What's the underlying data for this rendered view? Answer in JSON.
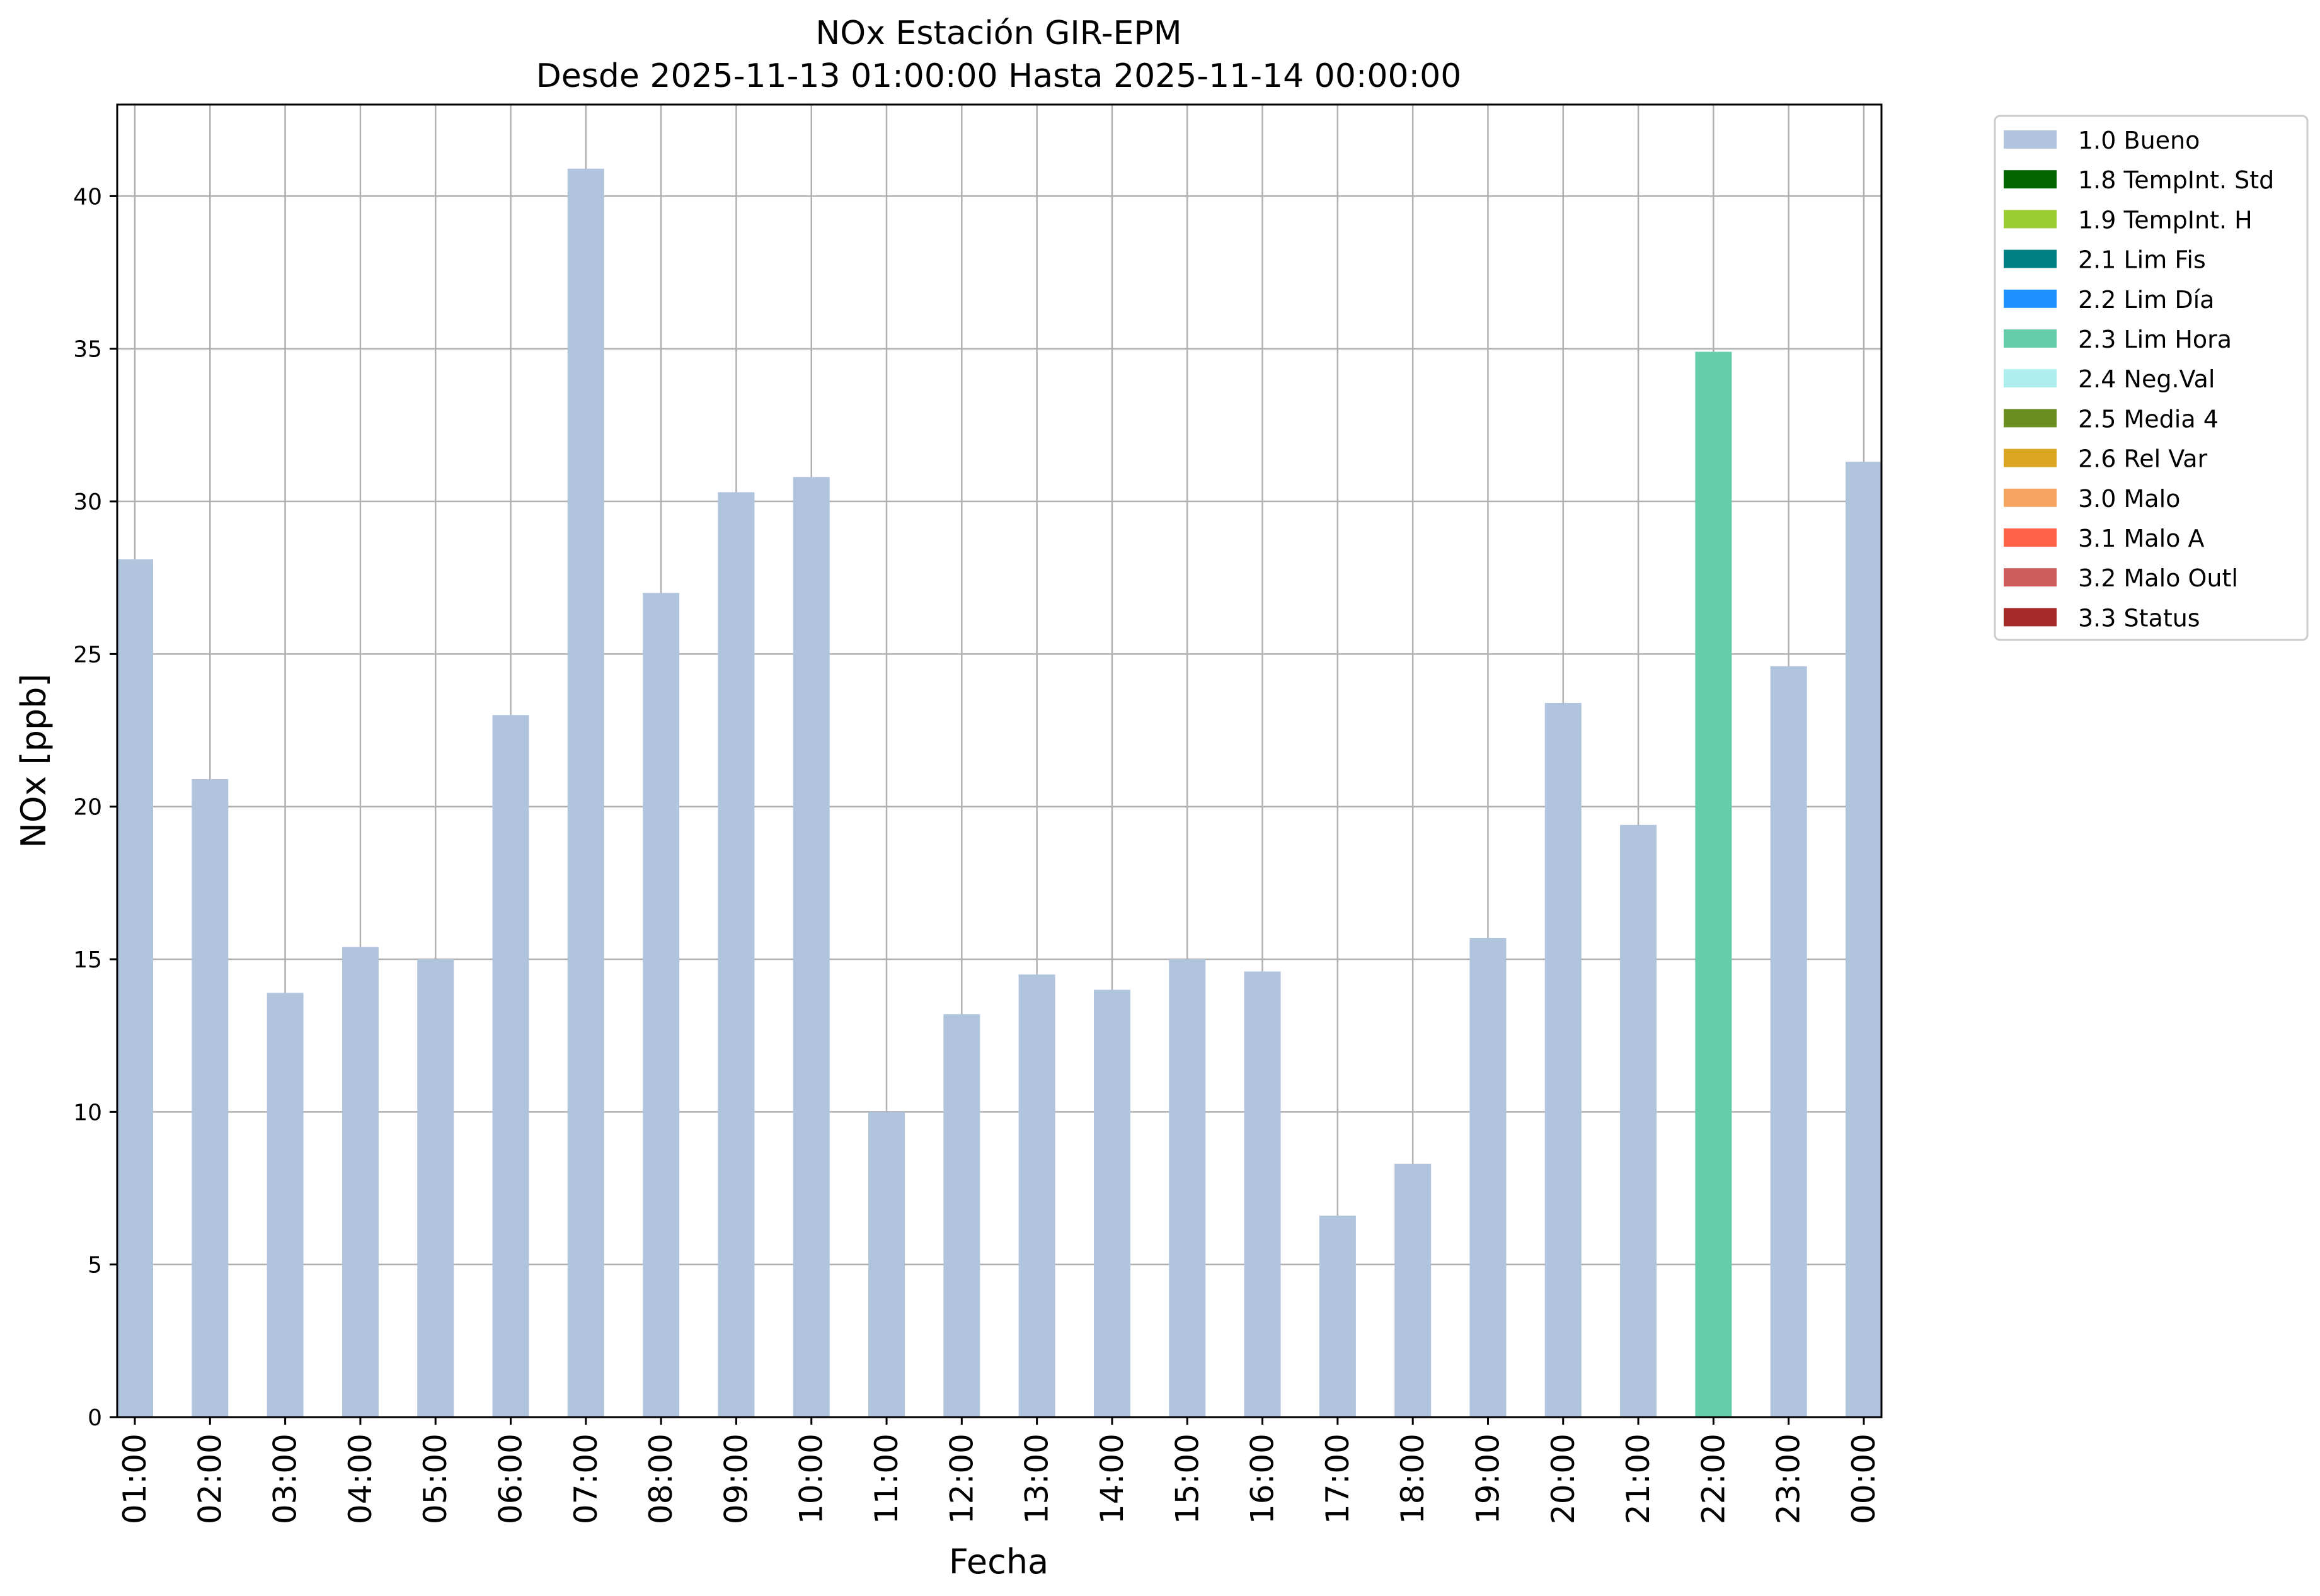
{
  "chart_data": {
    "type": "bar",
    "title": "NOx Estación GIR-EPM",
    "subtitle": "Desde 2025-11-13 01:00:00 Hasta 2025-11-14 00:00:00",
    "xlabel": "Fecha",
    "ylabel": "NOx [ppb]",
    "ylim": [
      0,
      43
    ],
    "yticks": [
      0,
      5,
      10,
      15,
      20,
      25,
      30,
      35,
      40
    ],
    "ytick_labels": [
      "0",
      "5",
      "10",
      "15",
      "20",
      "25",
      "30",
      "35",
      "40"
    ],
    "grid": true,
    "legend_position": "outside-top-right",
    "categories": [
      "01:00",
      "02:00",
      "03:00",
      "04:00",
      "05:00",
      "06:00",
      "07:00",
      "08:00",
      "09:00",
      "10:00",
      "11:00",
      "12:00",
      "13:00",
      "14:00",
      "15:00",
      "16:00",
      "17:00",
      "18:00",
      "19:00",
      "20:00",
      "21:00",
      "22:00",
      "23:00",
      "00:00"
    ],
    "values": [
      28.1,
      20.9,
      13.9,
      15.4,
      15.0,
      23.0,
      40.9,
      27.0,
      30.3,
      30.8,
      10.0,
      13.2,
      14.5,
      14.0,
      15.0,
      14.6,
      6.6,
      8.3,
      15.7,
      23.4,
      19.4,
      34.9,
      24.6,
      31.3
    ],
    "bar_flags": [
      "1.0 Bueno",
      "1.0 Bueno",
      "1.0 Bueno",
      "1.0 Bueno",
      "1.0 Bueno",
      "1.0 Bueno",
      "1.0 Bueno",
      "1.0 Bueno",
      "1.0 Bueno",
      "1.0 Bueno",
      "1.0 Bueno",
      "1.0 Bueno",
      "1.0 Bueno",
      "1.0 Bueno",
      "1.0 Bueno",
      "1.0 Bueno",
      "1.0 Bueno",
      "1.0 Bueno",
      "1.0 Bueno",
      "1.0 Bueno",
      "1.0 Bueno",
      "2.3 Lim Hora",
      "1.0 Bueno",
      "1.0 Bueno"
    ],
    "legend": [
      {
        "label": "1.0 Bueno",
        "color": "#b0c4de"
      },
      {
        "label": "1.8 TempInt. Std",
        "color": "#006400"
      },
      {
        "label": "1.9 TempInt. H",
        "color": "#9acd32"
      },
      {
        "label": "2.1 Lim Fis",
        "color": "#008080"
      },
      {
        "label": "2.2 Lim Día",
        "color": "#1e90ff"
      },
      {
        "label": "2.3 Lim Hora",
        "color": "#66cdaa"
      },
      {
        "label": "2.4 Neg.Val",
        "color": "#afeeee"
      },
      {
        "label": "2.5 Media 4",
        "color": "#6b8e23"
      },
      {
        "label": "2.6 Rel Var",
        "color": "#daa520"
      },
      {
        "label": "3.0 Malo",
        "color": "#f4a460"
      },
      {
        "label": "3.1 Malo A",
        "color": "#ff6347"
      },
      {
        "label": "3.2 Malo Outl",
        "color": "#cd5c5c"
      },
      {
        "label": "3.3 Status",
        "color": "#a52a2a"
      }
    ]
  }
}
